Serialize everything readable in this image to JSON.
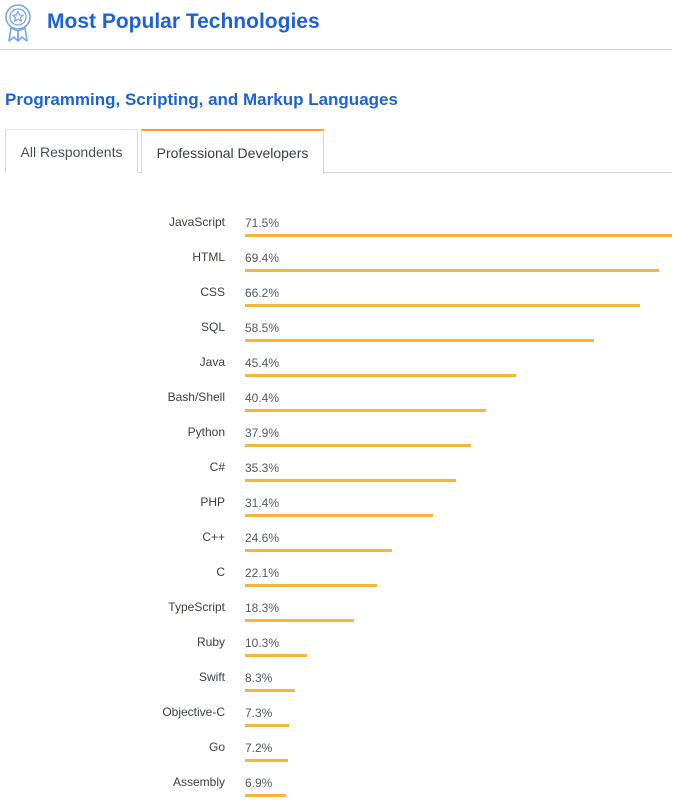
{
  "header": {
    "title": "Most Popular Technologies",
    "icon": "award-ribbon-icon"
  },
  "section": {
    "title": "Programming, Scripting, and Markup Languages"
  },
  "tabs": [
    {
      "label": "All Respondents",
      "active": false
    },
    {
      "label": "Professional Developers",
      "active": true
    }
  ],
  "colors": {
    "accent": "#1e63d6",
    "bar": "#f4b73b",
    "active_tab": "#f4a31a"
  },
  "chart_data": {
    "type": "bar",
    "orientation": "horizontal",
    "categories": [
      "JavaScript",
      "HTML",
      "CSS",
      "SQL",
      "Java",
      "Bash/Shell",
      "Python",
      "C#",
      "PHP",
      "C++",
      "C",
      "TypeScript",
      "Ruby",
      "Swift",
      "Objective-C",
      "Go",
      "Assembly"
    ],
    "values": [
      71.5,
      69.4,
      66.2,
      58.5,
      45.4,
      40.4,
      37.9,
      35.3,
      31.4,
      24.6,
      22.1,
      18.3,
      10.3,
      8.3,
      7.3,
      7.2,
      6.9
    ],
    "value_labels": [
      "71.5%",
      "69.4%",
      "66.2%",
      "58.5%",
      "45.4%",
      "40.4%",
      "37.9%",
      "35.3%",
      "31.4%",
      "24.6%",
      "22.1%",
      "18.3%",
      "10.3%",
      "8.3%",
      "7.3%",
      "7.2%",
      "6.9%"
    ],
    "xlim": [
      0,
      71.5
    ],
    "grid": false,
    "legend": "none"
  }
}
